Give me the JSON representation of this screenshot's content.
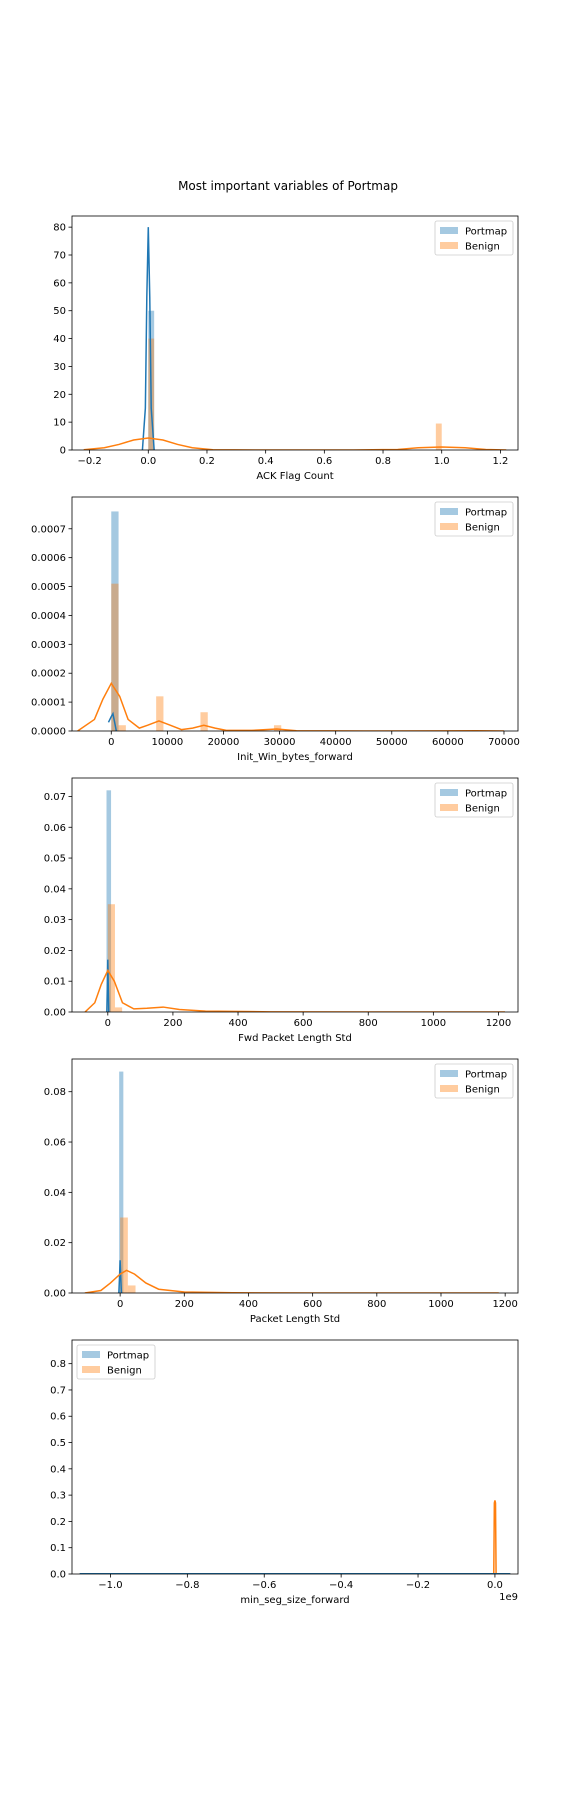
{
  "title": "Most important variables of Portmap",
  "colors": {
    "portmap": "#1f77b4",
    "benign": "#ff7f0e"
  },
  "chart_data": [
    {
      "type": "histogram+kde",
      "xlabel": "ACK Flag Count",
      "xlim": [
        -0.26,
        1.26
      ],
      "ylim": [
        0,
        84
      ],
      "xticks": [
        -0.2,
        0.0,
        0.2,
        0.4,
        0.6,
        0.8,
        1.0,
        1.2
      ],
      "xtick_labels": [
        "−0.2",
        "0.0",
        "0.2",
        "0.4",
        "0.6",
        "0.8",
        "1.0",
        "1.2"
      ],
      "yticks": [
        0,
        10,
        20,
        30,
        40,
        50,
        60,
        70,
        80
      ],
      "ytick_labels": [
        "0",
        "10",
        "20",
        "30",
        "40",
        "50",
        "60",
        "70",
        "80"
      ],
      "legend": {
        "position": "upper right",
        "entries": [
          "Portmap",
          "Benign"
        ]
      },
      "bars": [
        {
          "series": "Portmap",
          "x0": 0.0,
          "x1": 0.02,
          "y": 50
        },
        {
          "series": "Benign",
          "x0": 0.0,
          "x1": 0.02,
          "y": 40
        },
        {
          "series": "Benign",
          "x0": 0.98,
          "x1": 1.0,
          "y": 9.5
        }
      ],
      "kde": [
        {
          "series": "Portmap",
          "points": [
            [
              -0.02,
              0
            ],
            [
              -0.01,
              15
            ],
            [
              -0.005,
              55
            ],
            [
              0,
              80
            ],
            [
              0.005,
              55
            ],
            [
              0.01,
              15
            ],
            [
              0.02,
              0
            ]
          ]
        },
        {
          "series": "Benign",
          "points": [
            [
              -0.22,
              0.1
            ],
            [
              -0.15,
              0.8
            ],
            [
              -0.1,
              2
            ],
            [
              -0.05,
              3.6
            ],
            [
              0,
              4.3
            ],
            [
              0.05,
              3.6
            ],
            [
              0.1,
              2
            ],
            [
              0.15,
              0.8
            ],
            [
              0.22,
              0.1
            ],
            [
              0.4,
              0
            ],
            [
              0.7,
              0
            ],
            [
              0.85,
              0.2
            ],
            [
              0.92,
              0.8
            ],
            [
              1.0,
              1.1
            ],
            [
              1.08,
              0.8
            ],
            [
              1.15,
              0.2
            ],
            [
              1.22,
              0
            ]
          ]
        }
      ]
    },
    {
      "type": "histogram+kde",
      "xlabel": "Init_Win_bytes_forward",
      "xlim": [
        -7000,
        72500
      ],
      "ylim": [
        0,
        0.00081
      ],
      "xticks": [
        0,
        10000,
        20000,
        30000,
        40000,
        50000,
        60000,
        70000
      ],
      "xtick_labels": [
        "0",
        "10000",
        "20000",
        "30000",
        "40000",
        "50000",
        "60000",
        "70000"
      ],
      "yticks": [
        0,
        0.0001,
        0.0002,
        0.0003,
        0.0004,
        0.0005,
        0.0006,
        0.0007
      ],
      "ytick_labels": [
        "0.0000",
        "0.0001",
        "0.0002",
        "0.0003",
        "0.0004",
        "0.0005",
        "0.0006",
        "0.0007"
      ],
      "legend": {
        "position": "upper right",
        "entries": [
          "Portmap",
          "Benign"
        ]
      },
      "bars": [
        {
          "series": "Portmap",
          "x0": 0,
          "x1": 1300,
          "y": 0.00076
        },
        {
          "series": "Benign",
          "x0": 0,
          "x1": 1300,
          "y": 0.00051
        },
        {
          "series": "Benign",
          "x0": 1300,
          "x1": 2600,
          "y": 2e-05
        },
        {
          "series": "Benign",
          "x0": 8000,
          "x1": 9300,
          "y": 0.00012
        },
        {
          "series": "Benign",
          "x0": 15900,
          "x1": 17200,
          "y": 6.5e-05
        },
        {
          "series": "Benign",
          "x0": 29000,
          "x1": 30300,
          "y": 2e-05
        }
      ],
      "kde": [
        {
          "series": "Portmap",
          "points": [
            [
              -500,
              3e-05
            ],
            [
              0,
              5e-05
            ],
            [
              300,
              6e-05
            ],
            [
              600,
              3e-05
            ],
            [
              900,
              0
            ]
          ]
        },
        {
          "series": "Benign",
          "points": [
            [
              -6000,
              0
            ],
            [
              -3000,
              4e-05
            ],
            [
              -1500,
              0.00011
            ],
            [
              0,
              0.000165
            ],
            [
              1500,
              0.00012
            ],
            [
              3000,
              4e-05
            ],
            [
              5000,
              1e-05
            ],
            [
              6500,
              2e-05
            ],
            [
              8500,
              3.5e-05
            ],
            [
              10500,
              2e-05
            ],
            [
              12500,
              5e-06
            ],
            [
              14500,
              1e-05
            ],
            [
              16500,
              2e-05
            ],
            [
              18500,
              1e-05
            ],
            [
              20500,
              2e-06
            ],
            [
              25000,
              2e-06
            ],
            [
              29500,
              7e-06
            ],
            [
              33000,
              1e-06
            ],
            [
              45000,
              0
            ],
            [
              60000,
              5e-07
            ],
            [
              65000,
              1e-06
            ],
            [
              70000,
              0
            ]
          ]
        }
      ]
    },
    {
      "type": "histogram+kde",
      "xlabel": "Fwd Packet Length Std",
      "xlim": [
        -110,
        1260
      ],
      "ylim": [
        0,
        0.076
      ],
      "xticks": [
        0,
        200,
        400,
        600,
        800,
        1000,
        1200
      ],
      "xtick_labels": [
        "0",
        "200",
        "400",
        "600",
        "800",
        "1000",
        "1200"
      ],
      "yticks": [
        0,
        0.01,
        0.02,
        0.03,
        0.04,
        0.05,
        0.06,
        0.07
      ],
      "ytick_labels": [
        "0.00",
        "0.01",
        "0.02",
        "0.03",
        "0.04",
        "0.05",
        "0.06",
        "0.07"
      ],
      "legend": {
        "position": "upper right",
        "entries": [
          "Portmap",
          "Benign"
        ]
      },
      "bars": [
        {
          "series": "Portmap",
          "x0": -4,
          "x1": 10,
          "y": 0.072
        },
        {
          "series": "Benign",
          "x0": 0,
          "x1": 22,
          "y": 0.035
        },
        {
          "series": "Benign",
          "x0": 22,
          "x1": 44,
          "y": 0.0015
        }
      ],
      "kde": [
        {
          "series": "Portmap",
          "points": [
            [
              -3,
              0
            ],
            [
              -1.5,
              0.008
            ],
            [
              0,
              0.017
            ],
            [
              1.5,
              0.008
            ],
            [
              3,
              0
            ]
          ]
        },
        {
          "series": "Benign",
          "points": [
            [
              -70,
              0
            ],
            [
              -40,
              0.003
            ],
            [
              -20,
              0.009
            ],
            [
              0,
              0.0135
            ],
            [
              20,
              0.01
            ],
            [
              45,
              0.003
            ],
            [
              80,
              0.001
            ],
            [
              120,
              0.0012
            ],
            [
              170,
              0.0016
            ],
            [
              220,
              0.0008
            ],
            [
              300,
              0.0003
            ],
            [
              500,
              5e-05
            ],
            [
              800,
              0
            ],
            [
              1220,
              0
            ]
          ]
        }
      ]
    },
    {
      "type": "histogram+kde",
      "xlabel": "Packet Length Std",
      "xlim": [
        -150,
        1240
      ],
      "ylim": [
        0,
        0.093
      ],
      "xticks": [
        0,
        200,
        400,
        600,
        800,
        1000,
        1200
      ],
      "xtick_labels": [
        "0",
        "200",
        "400",
        "600",
        "800",
        "1000",
        "1200"
      ],
      "yticks": [
        0,
        0.02,
        0.04,
        0.06,
        0.08
      ],
      "ytick_labels": [
        "0.00",
        "0.02",
        "0.04",
        "0.06",
        "0.08"
      ],
      "legend": {
        "position": "upper right",
        "entries": [
          "Portmap",
          "Benign"
        ]
      },
      "bars": [
        {
          "series": "Portmap",
          "x0": -3,
          "x1": 10,
          "y": 0.088
        },
        {
          "series": "Benign",
          "x0": 0,
          "x1": 24,
          "y": 0.03
        },
        {
          "series": "Benign",
          "x0": 24,
          "x1": 48,
          "y": 0.003
        }
      ],
      "kde": [
        {
          "series": "Portmap",
          "points": [
            [
              -4,
              0
            ],
            [
              -2,
              0.006
            ],
            [
              0,
              0.013
            ],
            [
              2,
              0.006
            ],
            [
              4,
              0
            ]
          ]
        },
        {
          "series": "Benign",
          "points": [
            [
              -110,
              0
            ],
            [
              -60,
              0.001
            ],
            [
              -30,
              0.004
            ],
            [
              0,
              0.0075
            ],
            [
              20,
              0.009
            ],
            [
              45,
              0.0075
            ],
            [
              80,
              0.004
            ],
            [
              120,
              0.0015
            ],
            [
              200,
              0.0004
            ],
            [
              350,
              0.0001
            ],
            [
              600,
              0
            ],
            [
              1180,
              0
            ]
          ]
        }
      ]
    },
    {
      "type": "histogram+kde",
      "xlabel": "min_seg_size_forward",
      "xlim": [
        -1.1,
        0.06
      ],
      "offset_text": "1e9",
      "ylim": [
        0,
        0.89
      ],
      "xticks": [
        -1.0,
        -0.8,
        -0.6,
        -0.4,
        -0.2,
        0.0
      ],
      "xtick_labels": [
        "−1.0",
        "−0.8",
        "−0.6",
        "−0.4",
        "−0.2",
        "0.0"
      ],
      "yticks": [
        0,
        0.1,
        0.2,
        0.3,
        0.4,
        0.5,
        0.6,
        0.7,
        0.8
      ],
      "ytick_labels": [
        "0.0",
        "0.1",
        "0.2",
        "0.3",
        "0.4",
        "0.5",
        "0.6",
        "0.7",
        "0.8"
      ],
      "legend": {
        "position": "upper left",
        "entries": [
          "Portmap",
          "Benign"
        ]
      },
      "bars": [],
      "kde": [
        {
          "series": "Benign",
          "points": [
            [
              -1.08,
              0
            ],
            [
              -0.003,
              0
            ],
            [
              -0.0015,
              0.27
            ],
            [
              0,
              0.28
            ],
            [
              0.0015,
              0.27
            ],
            [
              0.003,
              0
            ],
            [
              0.04,
              0
            ]
          ]
        },
        {
          "series": "Portmap",
          "points": [
            [
              -1.08,
              0.001
            ],
            [
              0.04,
              0.001
            ]
          ]
        }
      ]
    }
  ]
}
